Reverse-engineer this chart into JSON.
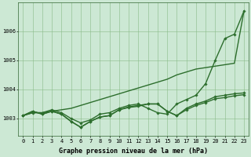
{
  "background_color": "#cce8d4",
  "grid_color": "#88bb88",
  "line_color": "#2d6e2d",
  "line_width": 1.0,
  "marker": "D",
  "marker_size": 1.8,
  "xlabel": "Graphe pression niveau de la mer (hPa)",
  "xlabel_fontsize": 6.0,
  "tick_fontsize": 5.0,
  "ylim": [
    1002.4,
    1007.0
  ],
  "yticks": [
    1003,
    1004,
    1005,
    1006
  ],
  "xticks": [
    0,
    1,
    2,
    3,
    4,
    5,
    6,
    7,
    8,
    9,
    10,
    11,
    12,
    13,
    14,
    15,
    16,
    17,
    18,
    19,
    20,
    21,
    22,
    23
  ],
  "series": [
    {
      "data": [
        1003.1,
        1003.2,
        1003.2,
        1003.25,
        1003.3,
        1003.35,
        1003.45,
        1003.55,
        1003.65,
        1003.75,
        1003.85,
        1003.95,
        1004.05,
        1004.15,
        1004.25,
        1004.35,
        1004.5,
        1004.6,
        1004.7,
        1004.75,
        1004.8,
        1004.85,
        1004.9,
        1006.7
      ],
      "has_markers": false
    },
    {
      "data": [
        1003.1,
        1003.2,
        1003.2,
        1003.3,
        1003.2,
        1003.0,
        1002.85,
        1002.95,
        1003.15,
        1003.2,
        1003.35,
        1003.45,
        1003.5,
        1003.35,
        1003.2,
        1003.15,
        1003.5,
        1003.65,
        1003.8,
        1004.2,
        1005.0,
        1005.75,
        1005.9,
        1006.7
      ],
      "has_markers": true
    },
    {
      "data": [
        1003.1,
        1003.25,
        1003.15,
        1003.25,
        1003.15,
        1002.9,
        1002.7,
        1002.9,
        1003.05,
        1003.1,
        1003.3,
        1003.4,
        1003.45,
        1003.5,
        1003.5,
        1003.25,
        1003.1,
        1003.35,
        1003.5,
        1003.6,
        1003.75,
        1003.8,
        1003.85,
        1003.88
      ],
      "has_markers": true
    },
    {
      "data": [
        1003.1,
        1003.25,
        1003.15,
        1003.25,
        1003.15,
        1002.9,
        1002.7,
        1002.9,
        1003.05,
        1003.1,
        1003.3,
        1003.38,
        1003.42,
        1003.5,
        1003.5,
        1003.25,
        1003.1,
        1003.3,
        1003.45,
        1003.55,
        1003.68,
        1003.72,
        1003.78,
        1003.82
      ],
      "has_markers": true
    }
  ]
}
